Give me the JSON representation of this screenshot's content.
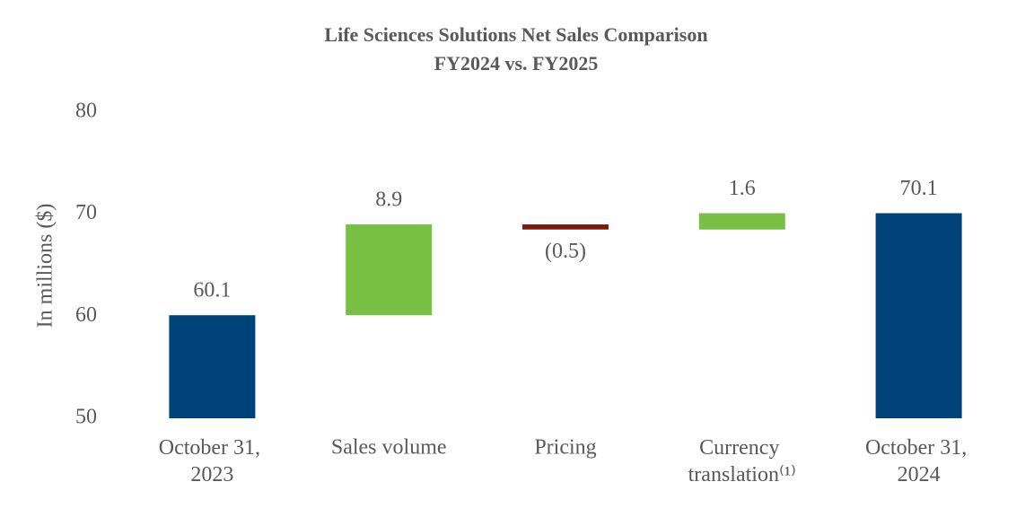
{
  "chart_data": {
    "type": "waterfall",
    "title": "Life Sciences Solutions Net Sales Comparison",
    "subtitle": "FY2024 vs. FY2025",
    "y_label": "In millions ($)",
    "categories": [
      "October 31, 2023",
      "Sales volume",
      "Pricing",
      "Currency translation⁽¹⁾",
      "October 31, 2024"
    ],
    "values": [
      60.1,
      8.9,
      -0.5,
      1.6,
      70.1
    ],
    "value_labels": [
      "60.1",
      "8.9",
      "(0.5)",
      "1.6",
      "70.1"
    ],
    "measure": [
      "total",
      "relative",
      "relative",
      "relative",
      "total"
    ],
    "colors": {
      "total": "#00427a",
      "increase": "#77c043",
      "decrease": "#7b1a0e"
    },
    "ylim": [
      50,
      80
    ],
    "yticks": [
      50,
      60,
      70,
      80
    ],
    "grid": false
  }
}
